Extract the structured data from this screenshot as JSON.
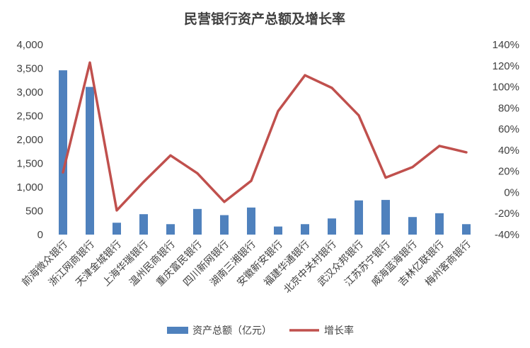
{
  "chart_data": {
    "type": "bar",
    "title": "民营银行资产总额及增长率",
    "categories": [
      "前海微众银行",
      "浙江网商银行",
      "天津金城银行",
      "上海华瑞银行",
      "温州民商银行",
      "重庆富民银行",
      "四川新网银行",
      "湖南三湘银行",
      "安徽新安银行",
      "福建华通银行",
      "北京中关村银行",
      "武汉众邦银行",
      "江苏苏宁银行",
      "威海蓝海银行",
      "吉林亿联银行",
      "梅州客商银行"
    ],
    "series": [
      {
        "name": "资产总额（亿元）",
        "type": "bar",
        "axis": "left",
        "color": "#4F81BD",
        "values": [
          3460,
          3110,
          250,
          430,
          220,
          540,
          410,
          570,
          170,
          220,
          340,
          720,
          730,
          370,
          450,
          220
        ]
      },
      {
        "name": "增长率",
        "type": "line",
        "axis": "right",
        "color": "#C0504D",
        "values": [
          19,
          123,
          -17,
          10,
          35,
          18,
          -9,
          11,
          77,
          111,
          99,
          73,
          14,
          24,
          44,
          38
        ]
      }
    ],
    "y_left": {
      "min": 0,
      "max": 4000,
      "step": 500,
      "tick_labels": [
        "0",
        "500",
        "1,000",
        "1,500",
        "2,000",
        "2,500",
        "3,000",
        "3,500",
        "4,000"
      ]
    },
    "y_right": {
      "min": -40,
      "max": 140,
      "step": 20,
      "tick_labels": [
        "-40%",
        "-20%",
        "0%",
        "20%",
        "40%",
        "60%",
        "80%",
        "100%",
        "120%",
        "140%"
      ]
    },
    "grid": false,
    "legend_position": "bottom"
  }
}
